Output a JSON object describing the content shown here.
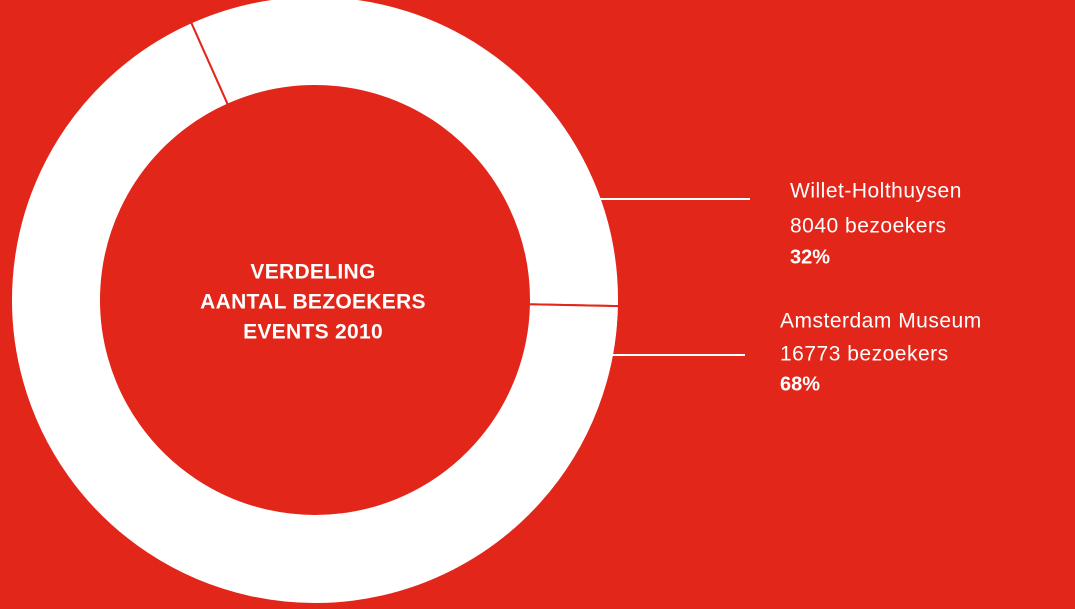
{
  "chart_data": {
    "type": "pie",
    "title": [
      "VERDELING",
      "AANTAL BEZOEKERS",
      "EVENTS 2010"
    ],
    "categories": [
      "Willet-Holthuysen",
      "Amsterdam Museum"
    ],
    "values": [
      32,
      68
    ],
    "value_labels": [
      "32%",
      "68%"
    ],
    "visitor_labels": [
      "8040 bezoekers",
      "16773 bezoekers"
    ],
    "color": "#ffffff",
    "background": "#e2261a"
  }
}
